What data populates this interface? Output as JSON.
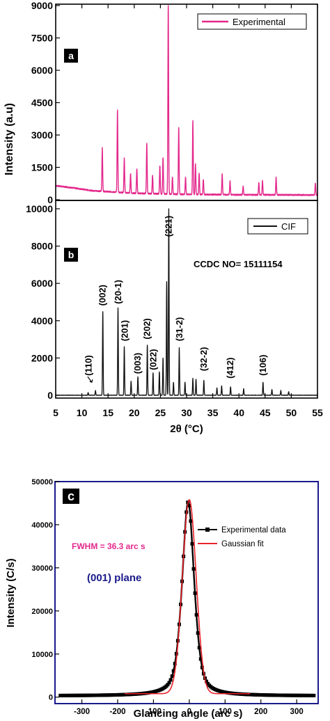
{
  "chart_data": [
    {
      "panel": "a",
      "type": "line",
      "ylabel": "Intensity (a.u)",
      "xlim": [
        5,
        55
      ],
      "ylim": [
        0,
        9000
      ],
      "yticks": [
        0,
        1500,
        3000,
        4500,
        6000,
        7500,
        9000
      ],
      "legend": "top-right",
      "color": "#e3288c",
      "series": [
        {
          "name": "Experimental",
          "baseline": [
            [
              5,
              650
            ],
            [
              8,
              560
            ],
            [
              12,
              420
            ],
            [
              20,
              300
            ],
            [
              30,
              250
            ],
            [
              40,
              230
            ],
            [
              55,
              220
            ]
          ],
          "peaks": [
            [
              13.9,
              2000
            ],
            [
              16.8,
              3800
            ],
            [
              18.1,
              1600
            ],
            [
              19.3,
              900
            ],
            [
              20.5,
              1150
            ],
            [
              22.4,
              2350
            ],
            [
              23.5,
              850
            ],
            [
              24.9,
              1300
            ],
            [
              25.5,
              1700
            ],
            [
              26.5,
              8800
            ],
            [
              27.3,
              800
            ],
            [
              28.5,
              3100
            ],
            [
              29.8,
              800
            ],
            [
              31.2,
              3400
            ],
            [
              31.7,
              1400
            ],
            [
              32.4,
              1000
            ],
            [
              33.2,
              700
            ],
            [
              36.8,
              950
            ],
            [
              38.3,
              650
            ],
            [
              40.8,
              400
            ],
            [
              43.8,
              550
            ],
            [
              44.5,
              650
            ],
            [
              47.1,
              800
            ],
            [
              54.6,
              550
            ]
          ]
        }
      ]
    },
    {
      "panel": "b",
      "type": "line",
      "xlabel": "2θ (°C)",
      "xlim": [
        5,
        55
      ],
      "xticks": [
        5,
        10,
        15,
        20,
        25,
        30,
        35,
        40,
        45,
        50,
        55
      ],
      "ylim": [
        0,
        10000
      ],
      "yticks": [
        0,
        2000,
        4000,
        6000,
        8000,
        10000
      ],
      "legend": "top-right",
      "color": "#111111",
      "annotation": "CCDC NO= 15111154",
      "series": [
        {
          "name": "CIF",
          "peaks": [
            [
              11.2,
              150
            ],
            [
              12.6,
              250
            ],
            [
              14.0,
              4500
            ],
            [
              16.9,
              4700
            ],
            [
              18.1,
              2600
            ],
            [
              19.4,
              750
            ],
            [
              20.7,
              1000
            ],
            [
              22.5,
              2700
            ],
            [
              23.6,
              1200
            ],
            [
              24.8,
              1250
            ],
            [
              25.5,
              2000
            ],
            [
              26.2,
              6100
            ],
            [
              26.6,
              10000
            ],
            [
              27.5,
              700
            ],
            [
              28.6,
              2550
            ],
            [
              29.7,
              700
            ],
            [
              31.2,
              900
            ],
            [
              31.8,
              850
            ],
            [
              33.3,
              800
            ],
            [
              35.8,
              400
            ],
            [
              36.7,
              500
            ],
            [
              38.4,
              450
            ],
            [
              40.9,
              350
            ],
            [
              44.6,
              700
            ],
            [
              46.3,
              300
            ],
            [
              48.0,
              250
            ],
            [
              49.5,
              200
            ]
          ],
          "hkl_labels": [
            {
              "label": "(110)",
              "x": 11.3,
              "y": 1050
            },
            {
              "label": "(002)",
              "x": 14.0,
              "y": 4800
            },
            {
              "label": "(20-1)",
              "x": 17.0,
              "y": 4900
            },
            {
              "label": "(201)",
              "x": 18.2,
              "y": 2900
            },
            {
              "label": "(003)",
              "x": 20.7,
              "y": 1150
            },
            {
              "label": "(202)",
              "x": 22.5,
              "y": 3000
            },
            {
              "label": "(022)",
              "x": 23.7,
              "y": 1350
            },
            {
              "label": "(221)",
              "x": 26.6,
              "y": 8500
            },
            {
              "label": "(31-2)",
              "x": 28.7,
              "y": 2900
            },
            {
              "label": "(32-2)",
              "x": 33.3,
              "y": 1300
            },
            {
              "label": "(412)",
              "x": 38.4,
              "y": 900
            },
            {
              "label": "(106)",
              "x": 44.6,
              "y": 1050
            }
          ]
        }
      ]
    },
    {
      "panel": "c",
      "type": "line",
      "xlabel": "Glancing angle (arc s)",
      "ylabel": "Intensity (C/s)",
      "xlim": [
        -375,
        360
      ],
      "ylim": [
        -1500,
        50000
      ],
      "xticks": [
        -300,
        -200,
        -100,
        0,
        100,
        200,
        300
      ],
      "yticks": [
        0,
        10000,
        20000,
        30000,
        40000,
        50000
      ],
      "legend": "top-right",
      "annotations": [
        "FWHM = 36.3 arc s",
        "(001) plane"
      ],
      "series": [
        {
          "name": "Experimental data",
          "color": "#000000",
          "marker": "square",
          "peak_center": -3,
          "peak_height": 45000,
          "fwhm": 36.3,
          "x_range": [
            -360,
            350
          ],
          "background": 300
        },
        {
          "name": "Gaussian fit",
          "color": "#e8232b",
          "peak_center": 0,
          "peak_height": 45000,
          "fwhm": 36.3,
          "x_range": [
            -180,
            170
          ],
          "background": 800
        }
      ]
    }
  ],
  "labels": {
    "ylabel_ab": "Intensity (a.u)",
    "xlabel_b": "2θ (°C)",
    "panel_a": "a",
    "panel_b": "b",
    "panel_c": "c",
    "legend_a": "Experimental",
    "legend_b": "CIF",
    "ccdc": "CCDC NO= 15111154",
    "legend_c1": "Experimental data",
    "legend_c2": "Gaussian fit",
    "fwhm": "FWHM = 36.3 arc s",
    "plane": "(001) plane",
    "ylabel_c": "Intensity (C/s)",
    "xlabel_c": "Glancing angle (arc s)"
  }
}
